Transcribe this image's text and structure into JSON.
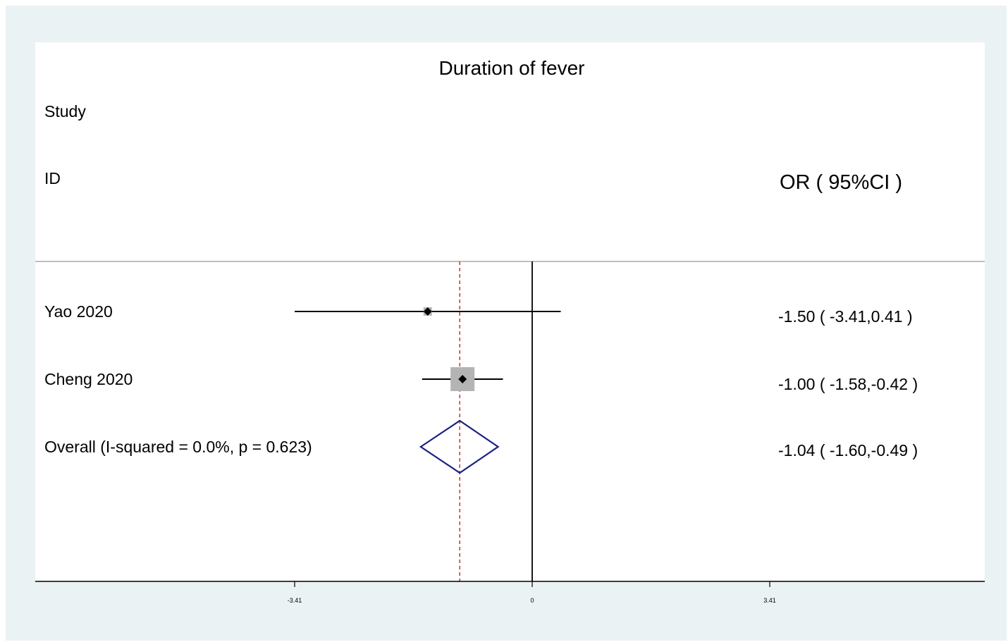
{
  "chart_data": {
    "type": "forest",
    "title": "Duration of fever",
    "header": {
      "study_line1": "Study",
      "study_line2": "ID",
      "effect_label": "OR ( 95%CI )"
    },
    "studies": [
      {
        "label": "Yao 2020",
        "estimate": -1.5,
        "lower": -3.41,
        "upper": 0.41,
        "weight_rel": 0.35,
        "text": "-1.50 ( -3.41,0.41 )"
      },
      {
        "label": "Cheng 2020",
        "estimate": -1.0,
        "lower": -1.58,
        "upper": -0.42,
        "weight_rel": 1.0,
        "text": "-1.00 ( -1.58,-0.42 )"
      }
    ],
    "overall": {
      "label": "Overall  (I-squared = 0.0%, p = 0.623)",
      "estimate": -1.04,
      "lower": -1.6,
      "upper": -0.49,
      "text": "-1.04 ( -1.60,-0.49 )"
    },
    "null_value": 0,
    "xlim": [
      -3.41,
      3.41
    ],
    "x_ticks": [
      {
        "value": -3.41,
        "label": "-3.41"
      },
      {
        "value": 0,
        "label": "0"
      },
      {
        "value": 3.41,
        "label": "3.41"
      }
    ],
    "colors": {
      "ci_line": "#000000",
      "weight_box": "#b4b4b4",
      "diamond": "#1a237e",
      "overall_ref_line": "#c0392b",
      "frame_bg": "#eaf2f3"
    }
  }
}
